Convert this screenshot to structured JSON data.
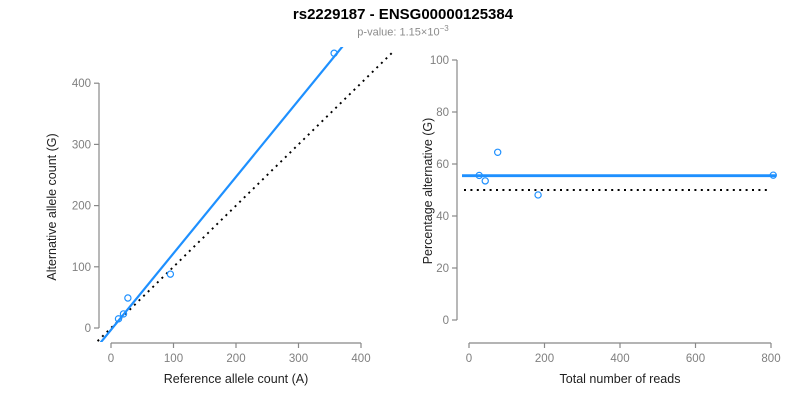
{
  "header": {
    "title": "rs2229187 - ENSG00000125384",
    "p_value_text": "p-value: 1.15×10",
    "p_value_exponent": "−3"
  },
  "colors": {
    "accent_blue": "#1e90ff",
    "axis_gray": "#888888",
    "tick_label_gray": "#7f7f7f",
    "axis_title_dark": "#1f1f1f",
    "reference_line_black": "#000000",
    "subtitle_gray": "#8c8c8c",
    "background": "#ffffff"
  },
  "chart_data": [
    {
      "type": "scatter",
      "name": "allele-counts-scatter",
      "xlabel": "Reference allele count (A)",
      "ylabel": "Alternative allele count (G)",
      "xlim": [
        -20,
        450
      ],
      "ylim": [
        -20,
        460
      ],
      "xticks": [
        0,
        100,
        200,
        300,
        400
      ],
      "yticks": [
        0,
        100,
        200,
        300,
        400
      ],
      "grid": false,
      "legend": "none",
      "points": [
        {
          "x": 12,
          "y": 15
        },
        {
          "x": 20,
          "y": 23
        },
        {
          "x": 27,
          "y": 49
        },
        {
          "x": 95,
          "y": 88
        },
        {
          "x": 357,
          "y": 449
        }
      ],
      "regression_line": {
        "slope": 1.25,
        "intercept": -3,
        "style": "solid",
        "color": "#1e90ff"
      },
      "identity_line": {
        "slope": 1,
        "intercept": 0,
        "style": "dotted",
        "color": "#000000"
      }
    },
    {
      "type": "scatter",
      "name": "percentage-vs-reads-scatter",
      "xlabel": "Total number of reads",
      "ylabel": "Percentage alternative (G)",
      "xlim": [
        -30,
        840
      ],
      "ylim": [
        0,
        100
      ],
      "xticks": [
        0,
        200,
        400,
        600,
        800
      ],
      "yticks": [
        0,
        20,
        40,
        60,
        80,
        100
      ],
      "grid": false,
      "legend": "none",
      "points": [
        {
          "x": 27,
          "y": 55.6
        },
        {
          "x": 43,
          "y": 53.5
        },
        {
          "x": 76,
          "y": 64.5
        },
        {
          "x": 183,
          "y": 48.1
        },
        {
          "x": 806,
          "y": 55.7
        }
      ],
      "mean_line": {
        "y": 55.5,
        "style": "solid",
        "color": "#1e90ff"
      },
      "reference_line": {
        "y": 50,
        "style": "dotted",
        "color": "#000000"
      }
    }
  ]
}
